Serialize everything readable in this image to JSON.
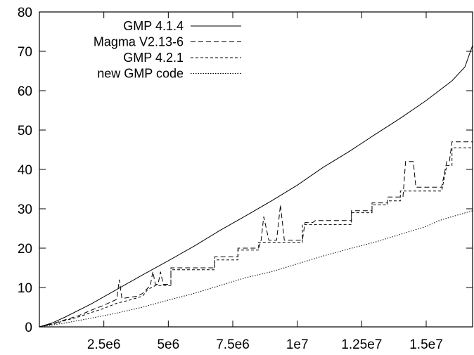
{
  "chart_data": {
    "type": "line",
    "title": "",
    "xlabel": "",
    "ylabel": "",
    "xlim": [
      0,
      16800000
    ],
    "ylim": [
      0,
      80
    ],
    "x_ticks": [
      {
        "value": 2500000,
        "label": "2.5e6"
      },
      {
        "value": 5000000,
        "label": "5e6"
      },
      {
        "value": 7500000,
        "label": "7.5e6"
      },
      {
        "value": 10000000,
        "label": "1e7"
      },
      {
        "value": 12500000,
        "label": "1.25e7"
      },
      {
        "value": 15000000,
        "label": "1.5e7"
      }
    ],
    "y_ticks": [
      {
        "value": 0,
        "label": "0"
      },
      {
        "value": 10,
        "label": "10"
      },
      {
        "value": 20,
        "label": "20"
      },
      {
        "value": 30,
        "label": "30"
      },
      {
        "value": 40,
        "label": "40"
      },
      {
        "value": 50,
        "label": "50"
      },
      {
        "value": 60,
        "label": "60"
      },
      {
        "value": 70,
        "label": "70"
      },
      {
        "value": 80,
        "label": "80"
      }
    ],
    "legend_position": "top-left",
    "grid": false,
    "series": [
      {
        "name": "GMP 4.1.4",
        "style": "solid",
        "points": [
          [
            0,
            0
          ],
          [
            500000,
            1
          ],
          [
            1000000,
            2.5
          ],
          [
            2000000,
            5.8
          ],
          [
            3000000,
            9.5
          ],
          [
            4000000,
            13.2
          ],
          [
            5000000,
            16.8
          ],
          [
            6000000,
            20.5
          ],
          [
            7000000,
            24.5
          ],
          [
            8000000,
            28.2
          ],
          [
            9000000,
            32
          ],
          [
            10000000,
            36
          ],
          [
            11000000,
            40.5
          ],
          [
            12000000,
            44.5
          ],
          [
            13000000,
            48.8
          ],
          [
            14000000,
            53
          ],
          [
            15000000,
            57.5
          ],
          [
            16000000,
            62.5
          ],
          [
            16500000,
            66
          ],
          [
            16800000,
            71.5
          ]
        ]
      },
      {
        "name": "Magma V2.13-6",
        "style": "dashed",
        "points": [
          [
            0,
            0
          ],
          [
            500000,
            0.8
          ],
          [
            1000000,
            1.8
          ],
          [
            1500000,
            2.8
          ],
          [
            2000000,
            4.2
          ],
          [
            2500000,
            5.5
          ],
          [
            3000000,
            7
          ],
          [
            3100000,
            12
          ],
          [
            3200000,
            7.2
          ],
          [
            3800000,
            7.8
          ],
          [
            4000000,
            8.5
          ],
          [
            4300000,
            10.5
          ],
          [
            4400000,
            14
          ],
          [
            4500000,
            10.8
          ],
          [
            4600000,
            10.8
          ],
          [
            4700000,
            14
          ],
          [
            4800000,
            10.8
          ],
          [
            5100000,
            10.8
          ],
          [
            5100000,
            15
          ],
          [
            6800000,
            15
          ],
          [
            6800000,
            17.8
          ],
          [
            7700000,
            17.8
          ],
          [
            7700000,
            20
          ],
          [
            8500000,
            20
          ],
          [
            8600000,
            22
          ],
          [
            8700000,
            28
          ],
          [
            8900000,
            22
          ],
          [
            9200000,
            22
          ],
          [
            9350000,
            31
          ],
          [
            9500000,
            22
          ],
          [
            10200000,
            22
          ],
          [
            10300000,
            26.5
          ],
          [
            10600000,
            26.5
          ],
          [
            10700000,
            27
          ],
          [
            12100000,
            27
          ],
          [
            12100000,
            29.5
          ],
          [
            12900000,
            29.5
          ],
          [
            12900000,
            31.5
          ],
          [
            13500000,
            31.5
          ],
          [
            13500000,
            33
          ],
          [
            14100000,
            33
          ],
          [
            14200000,
            42
          ],
          [
            14500000,
            42
          ],
          [
            14600000,
            35.5
          ],
          [
            15600000,
            35.5
          ],
          [
            15800000,
            42
          ],
          [
            15900000,
            42
          ],
          [
            16000000,
            47
          ],
          [
            16800000,
            47
          ]
        ]
      },
      {
        "name": "GMP 4.2.1",
        "style": "dotted-dashed",
        "points": [
          [
            0,
            0
          ],
          [
            500000,
            0.7
          ],
          [
            1000000,
            1.6
          ],
          [
            1500000,
            2.5
          ],
          [
            2000000,
            3.6
          ],
          [
            2500000,
            4.7
          ],
          [
            3000000,
            6
          ],
          [
            3500000,
            6.8
          ],
          [
            4000000,
            7.8
          ],
          [
            4200000,
            9.5
          ],
          [
            4500000,
            10.5
          ],
          [
            5100000,
            10.5
          ],
          [
            5100000,
            14.5
          ],
          [
            6800000,
            14.5
          ],
          [
            6800000,
            17
          ],
          [
            7700000,
            17
          ],
          [
            7700000,
            19.5
          ],
          [
            8500000,
            19.5
          ],
          [
            8500000,
            21.5
          ],
          [
            10200000,
            21.5
          ],
          [
            10200000,
            26
          ],
          [
            12100000,
            26
          ],
          [
            12100000,
            29
          ],
          [
            12900000,
            29
          ],
          [
            12900000,
            31
          ],
          [
            13500000,
            31
          ],
          [
            13500000,
            32
          ],
          [
            14000000,
            32
          ],
          [
            14000000,
            34.5
          ],
          [
            15600000,
            34.5
          ],
          [
            15800000,
            41
          ],
          [
            16000000,
            41
          ],
          [
            16000000,
            45.5
          ],
          [
            16800000,
            45.5
          ]
        ]
      },
      {
        "name": "new GMP code",
        "style": "dotted",
        "points": [
          [
            0,
            0
          ],
          [
            1000000,
            1
          ],
          [
            2000000,
            2.2
          ],
          [
            3000000,
            3.5
          ],
          [
            4000000,
            5
          ],
          [
            5000000,
            6.8
          ],
          [
            6000000,
            8.5
          ],
          [
            7000000,
            10.5
          ],
          [
            8000000,
            12.5
          ],
          [
            9000000,
            14
          ],
          [
            10000000,
            16
          ],
          [
            11000000,
            18
          ],
          [
            12000000,
            19.8
          ],
          [
            13000000,
            21.5
          ],
          [
            14000000,
            23.5
          ],
          [
            15000000,
            25.5
          ],
          [
            15500000,
            27
          ],
          [
            16000000,
            28
          ],
          [
            16800000,
            29.5
          ]
        ]
      }
    ]
  }
}
